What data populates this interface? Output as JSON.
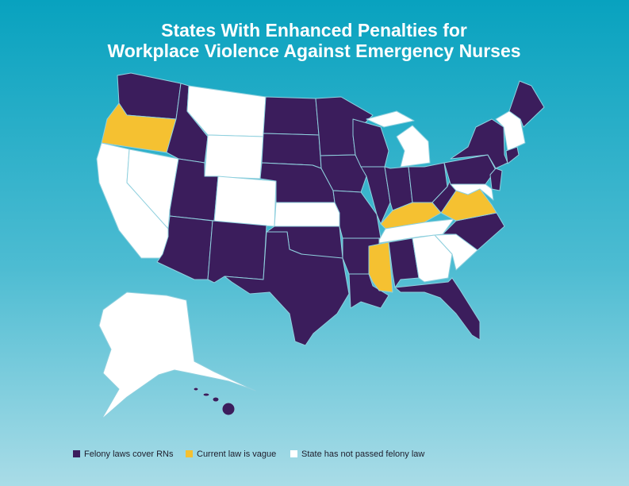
{
  "title": [
    "States With Enhanced Penalties for",
    "Workplace Violence Against Emergency Nurses"
  ],
  "legend": [
    {
      "label": "Felony laws cover RNs",
      "color": "#3b1d5c"
    },
    {
      "label": "Current law is vague",
      "color": "#f5c131"
    },
    {
      "label": "State has not passed felony law",
      "color": "#ffffff"
    }
  ]
}
